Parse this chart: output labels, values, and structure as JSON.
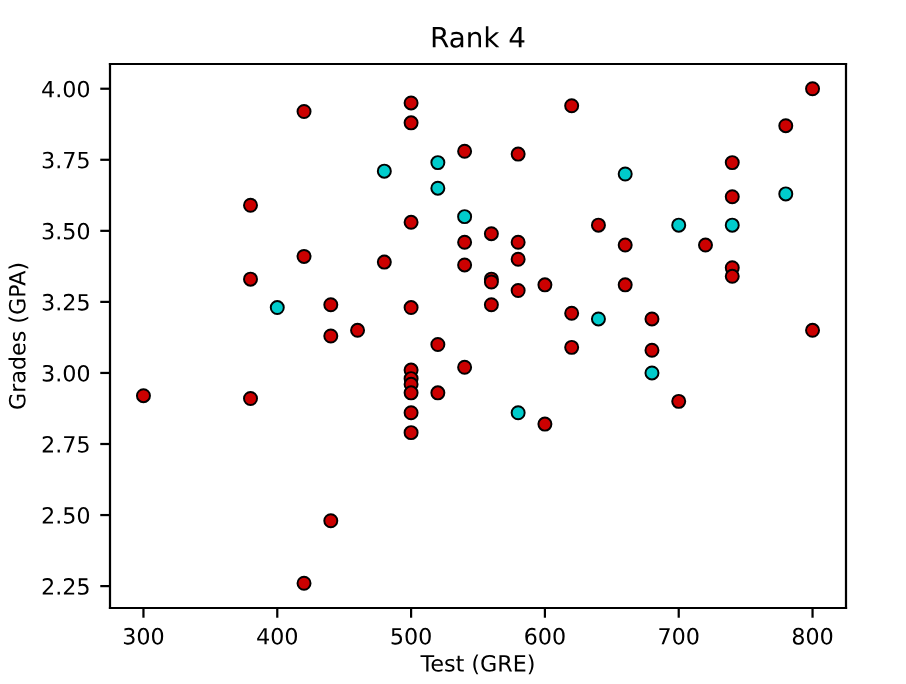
{
  "chart_data": {
    "type": "scatter",
    "title": "Rank 4",
    "xlabel": "Test (GRE)",
    "ylabel": "Grades (GPA)",
    "xlim": [
      275,
      825
    ],
    "ylim": [
      2.173,
      4.087
    ],
    "xticks": [
      300,
      400,
      500,
      600,
      700,
      800
    ],
    "yticks": [
      {
        "value": 2.25,
        "label": "2.25"
      },
      {
        "value": 2.5,
        "label": "2.50"
      },
      {
        "value": 2.75,
        "label": "2.75"
      },
      {
        "value": 3.0,
        "label": "3.00"
      },
      {
        "value": 3.25,
        "label": "3.25"
      },
      {
        "value": 3.5,
        "label": "3.50"
      },
      {
        "value": 3.75,
        "label": "3.75"
      },
      {
        "value": 4.0,
        "label": "4.00"
      }
    ],
    "grid": false,
    "marker": "circle",
    "series": [
      {
        "color": "#cc0000",
        "x": [
          300,
          380,
          380,
          380,
          420,
          420,
          420,
          440,
          440,
          440,
          460,
          480,
          500,
          500,
          500,
          500,
          500,
          500,
          500,
          500,
          500,
          500,
          520,
          520,
          540,
          540,
          540,
          540,
          560,
          560,
          560,
          560,
          580,
          580,
          580,
          580,
          600,
          600,
          620,
          620,
          620,
          640,
          660,
          660,
          680,
          680,
          700,
          720,
          740,
          740,
          740,
          740,
          780,
          800,
          800
        ],
        "values": [
          2.92,
          3.59,
          3.33,
          2.91,
          3.92,
          3.41,
          2.26,
          3.24,
          3.13,
          2.48,
          3.15,
          3.39,
          3.95,
          3.88,
          3.53,
          3.23,
          3.01,
          2.98,
          2.96,
          2.93,
          2.86,
          2.79,
          3.1,
          2.93,
          3.78,
          3.46,
          3.38,
          3.02,
          3.49,
          3.33,
          3.32,
          3.24,
          3.77,
          3.46,
          3.4,
          3.29,
          3.31,
          2.82,
          3.94,
          3.21,
          3.09,
          3.52,
          3.45,
          3.31,
          3.19,
          3.08,
          2.9,
          3.45,
          3.74,
          3.62,
          3.37,
          3.34,
          3.87,
          4.0,
          3.15
        ]
      },
      {
        "color": "#00cccc",
        "x": [
          400,
          480,
          520,
          520,
          540,
          580,
          640,
          660,
          680,
          700,
          740,
          780
        ],
        "values": [
          3.23,
          3.71,
          3.74,
          3.65,
          3.55,
          2.86,
          3.19,
          3.7,
          3.0,
          3.52,
          3.52,
          3.63
        ]
      }
    ]
  }
}
